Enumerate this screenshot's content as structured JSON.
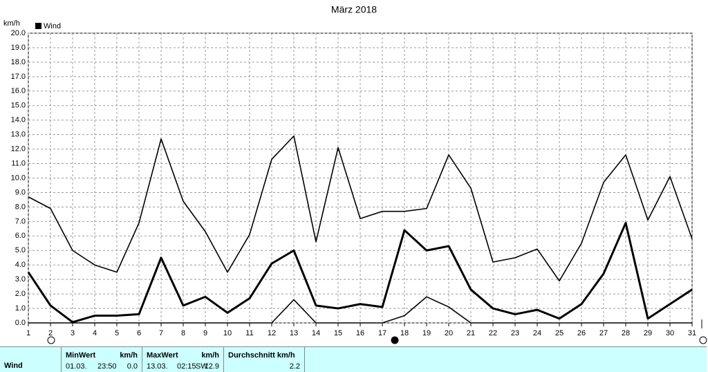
{
  "chart_data": {
    "type": "line",
    "title": "März 2018",
    "y_unit": "km/h",
    "legend": "Wind",
    "x": [
      1,
      2,
      3,
      4,
      5,
      6,
      7,
      8,
      9,
      10,
      11,
      12,
      13,
      14,
      15,
      16,
      17,
      18,
      19,
      20,
      21,
      22,
      23,
      24,
      25,
      26,
      27,
      28,
      29,
      30,
      31
    ],
    "xlim": [
      1,
      31
    ],
    "ylim": [
      0,
      20
    ],
    "xticks": [
      1,
      2,
      3,
      4,
      5,
      6,
      7,
      8,
      9,
      10,
      11,
      12,
      13,
      14,
      15,
      16,
      17,
      18,
      19,
      20,
      21,
      22,
      23,
      24,
      25,
      26,
      27,
      28,
      29,
      30,
      31
    ],
    "yticks": [
      {
        "value": 0,
        "label": "0.0"
      },
      {
        "value": 1,
        "label": "1.0"
      },
      {
        "value": 2,
        "label": "2.0"
      },
      {
        "value": 3,
        "label": "3.0"
      },
      {
        "value": 4,
        "label": "4.0"
      },
      {
        "value": 5,
        "label": "5.0"
      },
      {
        "value": 6,
        "label": "6.0"
      },
      {
        "value": 7,
        "label": "7.0"
      },
      {
        "value": 8,
        "label": "8.0"
      },
      {
        "value": 9,
        "label": "9.0"
      },
      {
        "value": 10,
        "label": "10.0"
      },
      {
        "value": 11,
        "label": "11.0"
      },
      {
        "value": 12,
        "label": "12.0"
      },
      {
        "value": 13,
        "label": "13.0"
      },
      {
        "value": 14,
        "label": "14.0"
      },
      {
        "value": 15,
        "label": "15.0"
      },
      {
        "value": 16,
        "label": "16.0"
      },
      {
        "value": 17,
        "label": "17.0"
      },
      {
        "value": 18,
        "label": "18.0"
      },
      {
        "value": 19,
        "label": "19.0"
      },
      {
        "value": 20,
        "label": "20.0"
      }
    ],
    "grid": true,
    "series": [
      {
        "color": "#000000",
        "line_width": 1.6,
        "values": [
          8.7,
          7.9,
          5.0,
          4.0,
          3.5,
          6.9,
          12.7,
          8.4,
          6.3,
          3.5,
          6.1,
          11.3,
          12.9,
          5.6,
          12.1,
          7.2,
          7.7,
          7.7,
          7.9,
          11.6,
          9.3,
          4.2,
          4.5,
          5.1,
          2.9,
          5.5,
          9.7,
          11.6,
          7.1,
          10.1,
          5.8
        ]
      },
      {
        "color": "#000000",
        "line_width": 3,
        "values": [
          3.5,
          1.2,
          0.05,
          0.5,
          0.5,
          0.6,
          4.5,
          1.2,
          1.8,
          0.7,
          1.7,
          4.1,
          5.0,
          1.2,
          1.0,
          1.3,
          1.1,
          6.4,
          5.0,
          5.3,
          2.3,
          1.0,
          0.6,
          0.9,
          0.3,
          1.3,
          3.4,
          6.9,
          0.3,
          1.3,
          2.3
        ]
      },
      {
        "color": "#000000",
        "line_width": 1.6,
        "values": [
          0,
          0,
          0,
          0,
          0,
          0,
          0,
          0,
          0,
          0,
          0,
          0,
          1.6,
          0,
          0,
          0,
          0,
          0.5,
          1.8,
          1.1,
          0,
          0,
          0,
          0,
          0,
          0,
          0,
          0,
          0,
          0,
          0
        ]
      }
    ]
  },
  "table": {
    "row_label": "Wind",
    "min": {
      "header": "MinWert",
      "unit": "km/h",
      "date": "01.03.",
      "time": "23:50",
      "value": "0.0"
    },
    "max": {
      "header": "MaxWert",
      "unit": "km/h",
      "date": "13.03.",
      "time": "02:15",
      "direction": "SW",
      "value": "12.9"
    },
    "avg": {
      "header": "Durchschnitt km/h",
      "value": "2.2"
    }
  }
}
